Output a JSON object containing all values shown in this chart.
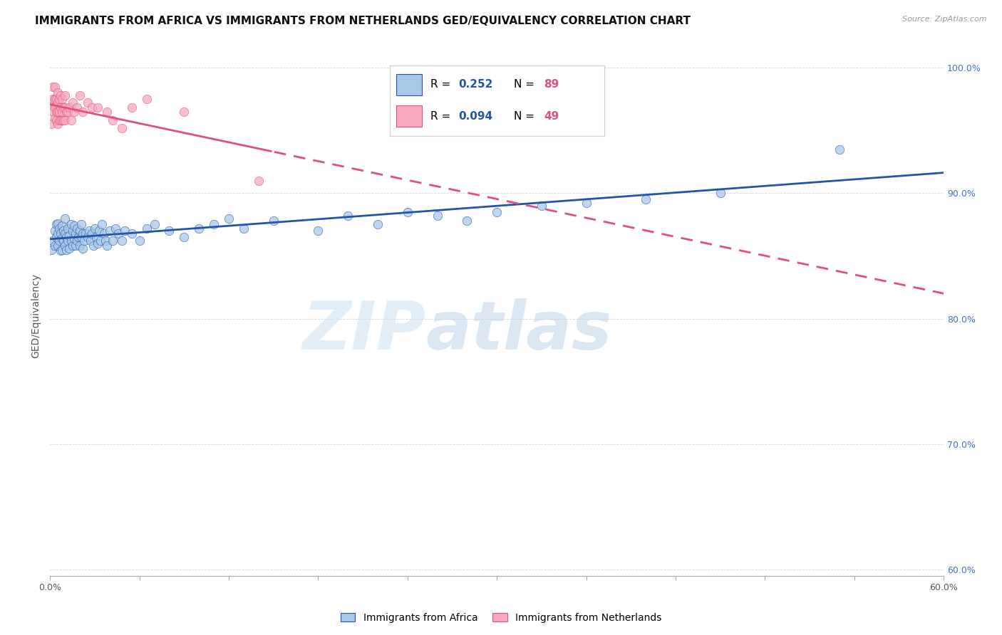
{
  "title": "IMMIGRANTS FROM AFRICA VS IMMIGRANTS FROM NETHERLANDS GED/EQUIVALENCY CORRELATION CHART",
  "source": "Source: ZipAtlas.com",
  "ylabel": "GED/Equivalency",
  "legend_label_blue": "Immigrants from Africa",
  "legend_label_pink": "Immigrants from Netherlands",
  "R_blue": 0.252,
  "N_blue": 89,
  "R_pink": 0.094,
  "N_pink": 49,
  "color_blue": "#a8c8e8",
  "color_pink": "#f8a8bc",
  "line_color_blue": "#2255aa",
  "line_color_pink": "#e0507a",
  "xlim": [
    0.0,
    0.6
  ],
  "ylim": [
    0.595,
    1.01
  ],
  "x_tick_positions": [
    0.0,
    0.06,
    0.12,
    0.18,
    0.24,
    0.3,
    0.36,
    0.42,
    0.48,
    0.54,
    0.6
  ],
  "y_ticks": [
    0.6,
    0.7,
    0.8,
    0.9,
    1.0
  ],
  "y_tick_labels_right": [
    "60.0%",
    "70.0%",
    "80.0%",
    "90.0%",
    "100.0%"
  ],
  "blue_x": [
    0.001,
    0.002,
    0.003,
    0.003,
    0.004,
    0.004,
    0.005,
    0.005,
    0.005,
    0.006,
    0.006,
    0.007,
    0.007,
    0.008,
    0.008,
    0.008,
    0.009,
    0.009,
    0.01,
    0.01,
    0.01,
    0.011,
    0.011,
    0.012,
    0.012,
    0.013,
    0.013,
    0.014,
    0.014,
    0.015,
    0.015,
    0.016,
    0.016,
    0.017,
    0.017,
    0.018,
    0.018,
    0.019,
    0.02,
    0.02,
    0.021,
    0.021,
    0.022,
    0.022,
    0.023,
    0.024,
    0.025,
    0.026,
    0.027,
    0.028,
    0.029,
    0.03,
    0.031,
    0.032,
    0.033,
    0.034,
    0.035,
    0.036,
    0.037,
    0.038,
    0.04,
    0.042,
    0.044,
    0.046,
    0.048,
    0.05,
    0.055,
    0.06,
    0.065,
    0.07,
    0.08,
    0.09,
    0.1,
    0.11,
    0.12,
    0.13,
    0.15,
    0.18,
    0.2,
    0.22,
    0.24,
    0.26,
    0.28,
    0.3,
    0.33,
    0.36,
    0.4,
    0.45,
    0.53
  ],
  "blue_y": [
    0.855,
    0.862,
    0.87,
    0.858,
    0.865,
    0.875,
    0.868,
    0.858,
    0.876,
    0.862,
    0.872,
    0.868,
    0.854,
    0.864,
    0.874,
    0.855,
    0.87,
    0.862,
    0.868,
    0.858,
    0.88,
    0.865,
    0.855,
    0.862,
    0.872,
    0.866,
    0.856,
    0.862,
    0.875,
    0.87,
    0.858,
    0.864,
    0.874,
    0.868,
    0.858,
    0.862,
    0.872,
    0.865,
    0.87,
    0.858,
    0.865,
    0.875,
    0.868,
    0.856,
    0.862,
    0.868,
    0.865,
    0.87,
    0.862,
    0.868,
    0.858,
    0.872,
    0.865,
    0.86,
    0.87,
    0.862,
    0.875,
    0.868,
    0.862,
    0.858,
    0.87,
    0.862,
    0.872,
    0.868,
    0.862,
    0.87,
    0.868,
    0.862,
    0.872,
    0.875,
    0.87,
    0.865,
    0.872,
    0.875,
    0.88,
    0.872,
    0.878,
    0.87,
    0.882,
    0.875,
    0.885,
    0.882,
    0.878,
    0.885,
    0.89,
    0.892,
    0.895,
    0.9,
    0.935
  ],
  "pink_x": [
    0.001,
    0.001,
    0.002,
    0.002,
    0.002,
    0.003,
    0.003,
    0.003,
    0.003,
    0.004,
    0.004,
    0.004,
    0.005,
    0.005,
    0.005,
    0.005,
    0.006,
    0.006,
    0.006,
    0.007,
    0.007,
    0.007,
    0.008,
    0.008,
    0.008,
    0.009,
    0.009,
    0.01,
    0.01,
    0.01,
    0.011,
    0.012,
    0.013,
    0.014,
    0.015,
    0.016,
    0.018,
    0.02,
    0.022,
    0.025,
    0.028,
    0.032,
    0.038,
    0.042,
    0.048,
    0.055,
    0.065,
    0.09,
    0.14
  ],
  "pink_y": [
    0.955,
    0.972,
    0.965,
    0.975,
    0.985,
    0.96,
    0.968,
    0.975,
    0.985,
    0.958,
    0.965,
    0.975,
    0.955,
    0.965,
    0.972,
    0.98,
    0.958,
    0.965,
    0.975,
    0.958,
    0.968,
    0.978,
    0.958,
    0.965,
    0.975,
    0.958,
    0.968,
    0.958,
    0.968,
    0.978,
    0.965,
    0.965,
    0.968,
    0.958,
    0.972,
    0.965,
    0.968,
    0.978,
    0.965,
    0.972,
    0.968,
    0.968,
    0.965,
    0.958,
    0.952,
    0.968,
    0.975,
    0.965,
    0.91
  ],
  "watermark_zip": "ZIP",
  "watermark_atlas": "atlas",
  "title_fontsize": 11,
  "axis_fontsize": 9,
  "legend_fontsize": 11,
  "dot_size": 80
}
